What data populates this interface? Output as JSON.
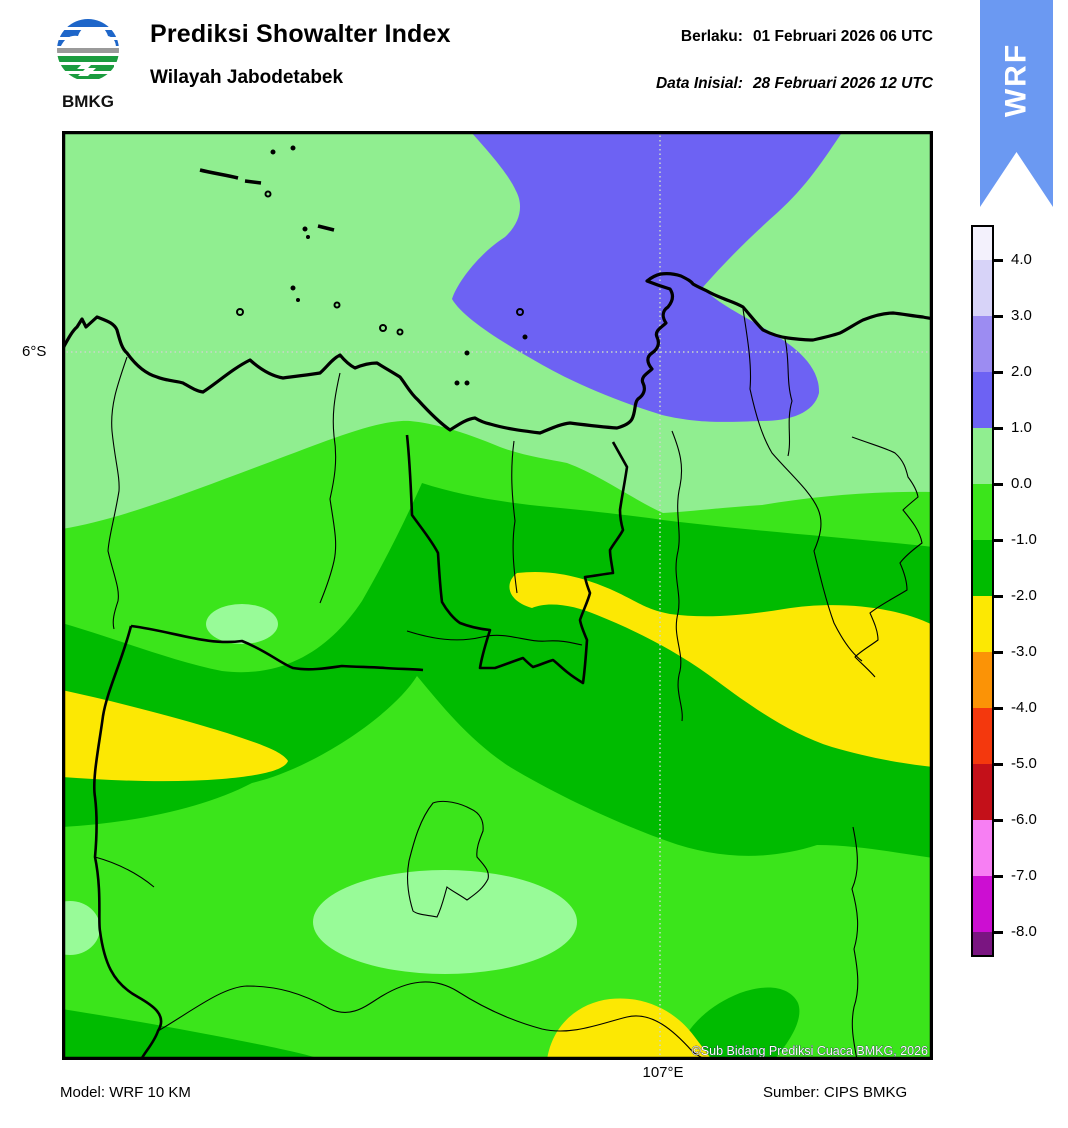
{
  "header": {
    "logo_text": "BMKG",
    "title": "Prediksi Showalter Index",
    "subtitle": "Wilayah Jabodetabek",
    "valid_label": "Berlaku:",
    "valid_value": "01 Februari 2026 06 UTC",
    "init_label": "Data Inisial:",
    "init_value": "28 Februari 2026 12 UTC"
  },
  "ribbon": {
    "label": "WRF",
    "color": "#6B99F2"
  },
  "map": {
    "lat_label": "6°S",
    "lon_label": "107°E",
    "copyright": "©Sub Bidang Prediksi Cuaca BMKG, 2026",
    "region_colors": {
      "si_0_to_1": "#90EE90",
      "si_0_to_minus1": "#3BE51B",
      "si_minus1_to_minus2": "#00BB00",
      "si_minus2_to_minus3": "#FCE803",
      "si_1_to_2": "#6D62F3",
      "highlight_pale": "#98FB98"
    }
  },
  "colorbar": {
    "ticks": [
      "4.0",
      "3.0",
      "2.0",
      "1.0",
      "0.0",
      "-1.0",
      "-2.0",
      "-3.0",
      "-4.0",
      "-5.0",
      "-6.0",
      "-7.0",
      "-8.0"
    ],
    "segment_colors": [
      "#F3F1FC",
      "#D7D3F8",
      "#9C8CF2",
      "#6D62F3",
      "#90EE90",
      "#3BE51B",
      "#00BB00",
      "#FCE803",
      "#FB9306",
      "#F4380D",
      "#C41019",
      "#F77FF3",
      "#CC0ED2",
      "#7A1581"
    ]
  },
  "footer": {
    "model": "Model: WRF 10 KM",
    "source": "Sumber: CIPS BMKG"
  }
}
